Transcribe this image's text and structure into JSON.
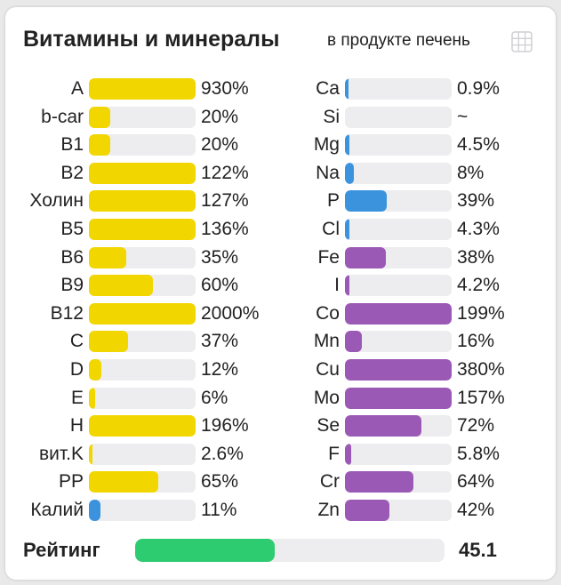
{
  "header": {
    "title": "Витамины и минералы",
    "subtitle": "в продукте печень"
  },
  "colors": {
    "vitamin": "#f2d600",
    "potassium": "#3b93de",
    "macro": "#3b93de",
    "micro": "#9b59b6",
    "rating": "#2ecc71",
    "track": "#ededef"
  },
  "chart_data": {
    "type": "bar",
    "max_fill_percent": 100,
    "left_column": [
      {
        "label": "A",
        "value": 930,
        "text": "930%",
        "group": "vitamin"
      },
      {
        "label": "b-car",
        "value": 20,
        "text": "20%",
        "group": "vitamin"
      },
      {
        "label": "B1",
        "value": 20,
        "text": "20%",
        "group": "vitamin"
      },
      {
        "label": "B2",
        "value": 122,
        "text": "122%",
        "group": "vitamin"
      },
      {
        "label": "Холин",
        "value": 127,
        "text": "127%",
        "group": "vitamin"
      },
      {
        "label": "B5",
        "value": 136,
        "text": "136%",
        "group": "vitamin"
      },
      {
        "label": "B6",
        "value": 35,
        "text": "35%",
        "group": "vitamin"
      },
      {
        "label": "B9",
        "value": 60,
        "text": "60%",
        "group": "vitamin"
      },
      {
        "label": "B12",
        "value": 2000,
        "text": "2000%",
        "group": "vitamin"
      },
      {
        "label": "C",
        "value": 37,
        "text": "37%",
        "group": "vitamin"
      },
      {
        "label": "D",
        "value": 12,
        "text": "12%",
        "group": "vitamin"
      },
      {
        "label": "E",
        "value": 6,
        "text": "6%",
        "group": "vitamin"
      },
      {
        "label": "H",
        "value": 196,
        "text": "196%",
        "group": "vitamin"
      },
      {
        "label": "вит.K",
        "value": 2.6,
        "text": "2.6%",
        "group": "vitamin"
      },
      {
        "label": "PP",
        "value": 65,
        "text": "65%",
        "group": "vitamin"
      },
      {
        "label": "Калий",
        "value": 11,
        "text": "11%",
        "group": "potassium"
      }
    ],
    "right_column": [
      {
        "label": "Ca",
        "value": 0.9,
        "text": "0.9%",
        "group": "macro"
      },
      {
        "label": "Si",
        "value": 0,
        "text": "~",
        "group": "macro"
      },
      {
        "label": "Mg",
        "value": 4.5,
        "text": "4.5%",
        "group": "macro"
      },
      {
        "label": "Na",
        "value": 8,
        "text": "8%",
        "group": "macro"
      },
      {
        "label": "P",
        "value": 39,
        "text": "39%",
        "group": "macro"
      },
      {
        "label": "Cl",
        "value": 4.3,
        "text": "4.3%",
        "group": "macro"
      },
      {
        "label": "Fe",
        "value": 38,
        "text": "38%",
        "group": "micro"
      },
      {
        "label": "I",
        "value": 4.2,
        "text": "4.2%",
        "group": "micro"
      },
      {
        "label": "Co",
        "value": 199,
        "text": "199%",
        "group": "micro"
      },
      {
        "label": "Mn",
        "value": 16,
        "text": "16%",
        "group": "micro"
      },
      {
        "label": "Cu",
        "value": 380,
        "text": "380%",
        "group": "micro"
      },
      {
        "label": "Mo",
        "value": 157,
        "text": "157%",
        "group": "micro"
      },
      {
        "label": "Se",
        "value": 72,
        "text": "72%",
        "group": "micro"
      },
      {
        "label": "F",
        "value": 5.8,
        "text": "5.8%",
        "group": "micro"
      },
      {
        "label": "Cr",
        "value": 64,
        "text": "64%",
        "group": "micro"
      },
      {
        "label": "Zn",
        "value": 42,
        "text": "42%",
        "group": "micro"
      }
    ]
  },
  "rating": {
    "label": "Рейтинг",
    "value": 45.1,
    "text": "45.1",
    "max": 100
  },
  "icons": {
    "table": "table-icon"
  }
}
